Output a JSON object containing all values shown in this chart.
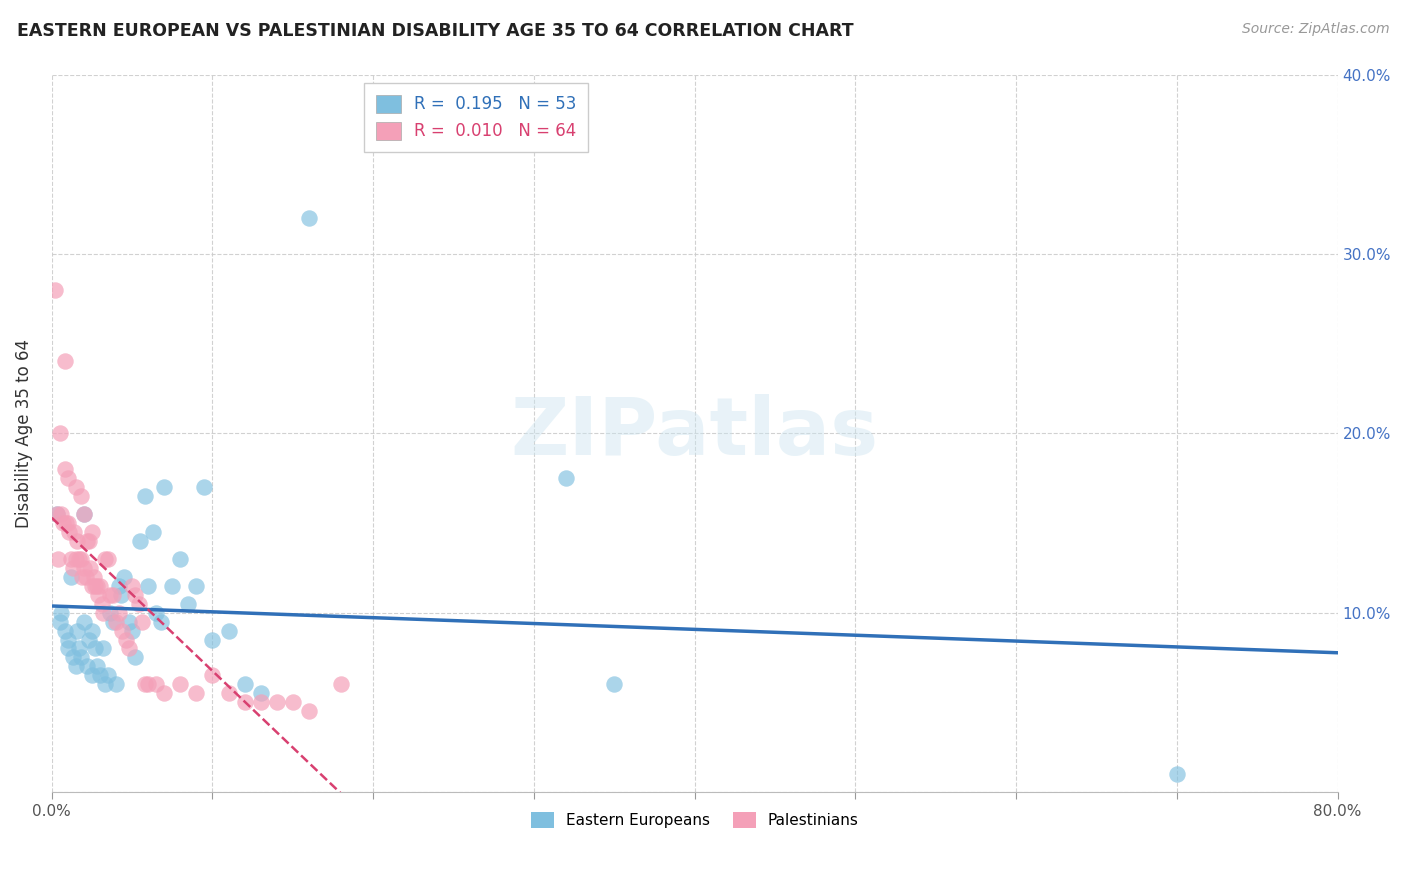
{
  "title": "EASTERN EUROPEAN VS PALESTINIAN DISABILITY AGE 35 TO 64 CORRELATION CHART",
  "source": "Source: ZipAtlas.com",
  "xlabel": "",
  "ylabel": "Disability Age 35 to 64",
  "xlim": [
    0.0,
    0.8
  ],
  "ylim": [
    0.0,
    0.4
  ],
  "xtick_positions": [
    0.0,
    0.1,
    0.2,
    0.3,
    0.4,
    0.5,
    0.6,
    0.7,
    0.8
  ],
  "xtick_labels": [
    "0.0%",
    "",
    "",
    "",
    "",
    "",
    "",
    "",
    "80.0%"
  ],
  "ytick_positions": [
    0.0,
    0.1,
    0.2,
    0.3,
    0.4
  ],
  "ytick_labels_right": [
    "",
    "10.0%",
    "20.0%",
    "30.0%",
    "40.0%"
  ],
  "legend_R_blue": "0.195",
  "legend_N_blue": "53",
  "legend_R_pink": "0.010",
  "legend_N_pink": "64",
  "legend_label_blue": "Eastern Europeans",
  "legend_label_pink": "Palestinians",
  "watermark": "ZIPatlas",
  "blue_color": "#7fbfdf",
  "pink_color": "#f4a0b8",
  "blue_line_color": "#3070b8",
  "pink_line_color": "#d84070",
  "ee_x": [
    0.003,
    0.005,
    0.006,
    0.008,
    0.01,
    0.01,
    0.012,
    0.013,
    0.015,
    0.016,
    0.017,
    0.018,
    0.02,
    0.02,
    0.022,
    0.023,
    0.025,
    0.025,
    0.027,
    0.028,
    0.03,
    0.032,
    0.033,
    0.035,
    0.036,
    0.038,
    0.04,
    0.042,
    0.043,
    0.045,
    0.048,
    0.05,
    0.052,
    0.055,
    0.058,
    0.06,
    0.063,
    0.065,
    0.068,
    0.07,
    0.075,
    0.08,
    0.085,
    0.09,
    0.095,
    0.1,
    0.11,
    0.12,
    0.13,
    0.16,
    0.32,
    0.35,
    0.7
  ],
  "ee_y": [
    0.155,
    0.095,
    0.1,
    0.09,
    0.085,
    0.08,
    0.12,
    0.075,
    0.07,
    0.09,
    0.08,
    0.075,
    0.155,
    0.095,
    0.07,
    0.085,
    0.09,
    0.065,
    0.08,
    0.07,
    0.065,
    0.08,
    0.06,
    0.065,
    0.1,
    0.095,
    0.06,
    0.115,
    0.11,
    0.12,
    0.095,
    0.09,
    0.075,
    0.14,
    0.165,
    0.115,
    0.145,
    0.1,
    0.095,
    0.17,
    0.115,
    0.13,
    0.105,
    0.115,
    0.17,
    0.085,
    0.09,
    0.06,
    0.055,
    0.32,
    0.175,
    0.06,
    0.01
  ],
  "pal_x": [
    0.002,
    0.003,
    0.004,
    0.005,
    0.006,
    0.007,
    0.008,
    0.008,
    0.009,
    0.01,
    0.01,
    0.011,
    0.012,
    0.013,
    0.014,
    0.015,
    0.015,
    0.016,
    0.017,
    0.018,
    0.018,
    0.019,
    0.02,
    0.02,
    0.021,
    0.022,
    0.023,
    0.024,
    0.025,
    0.025,
    0.026,
    0.027,
    0.028,
    0.029,
    0.03,
    0.031,
    0.032,
    0.033,
    0.035,
    0.036,
    0.038,
    0.04,
    0.042,
    0.044,
    0.046,
    0.048,
    0.05,
    0.052,
    0.054,
    0.056,
    0.058,
    0.06,
    0.065,
    0.07,
    0.08,
    0.09,
    0.1,
    0.11,
    0.12,
    0.13,
    0.14,
    0.15,
    0.16,
    0.18
  ],
  "pal_y": [
    0.28,
    0.155,
    0.13,
    0.2,
    0.155,
    0.15,
    0.24,
    0.18,
    0.15,
    0.175,
    0.15,
    0.145,
    0.13,
    0.125,
    0.145,
    0.17,
    0.13,
    0.14,
    0.13,
    0.165,
    0.13,
    0.12,
    0.155,
    0.125,
    0.12,
    0.14,
    0.14,
    0.125,
    0.145,
    0.115,
    0.12,
    0.115,
    0.115,
    0.11,
    0.115,
    0.105,
    0.1,
    0.13,
    0.13,
    0.11,
    0.11,
    0.095,
    0.1,
    0.09,
    0.085,
    0.08,
    0.115,
    0.11,
    0.105,
    0.095,
    0.06,
    0.06,
    0.06,
    0.055,
    0.06,
    0.055,
    0.065,
    0.055,
    0.05,
    0.05,
    0.05,
    0.05,
    0.045,
    0.06
  ]
}
